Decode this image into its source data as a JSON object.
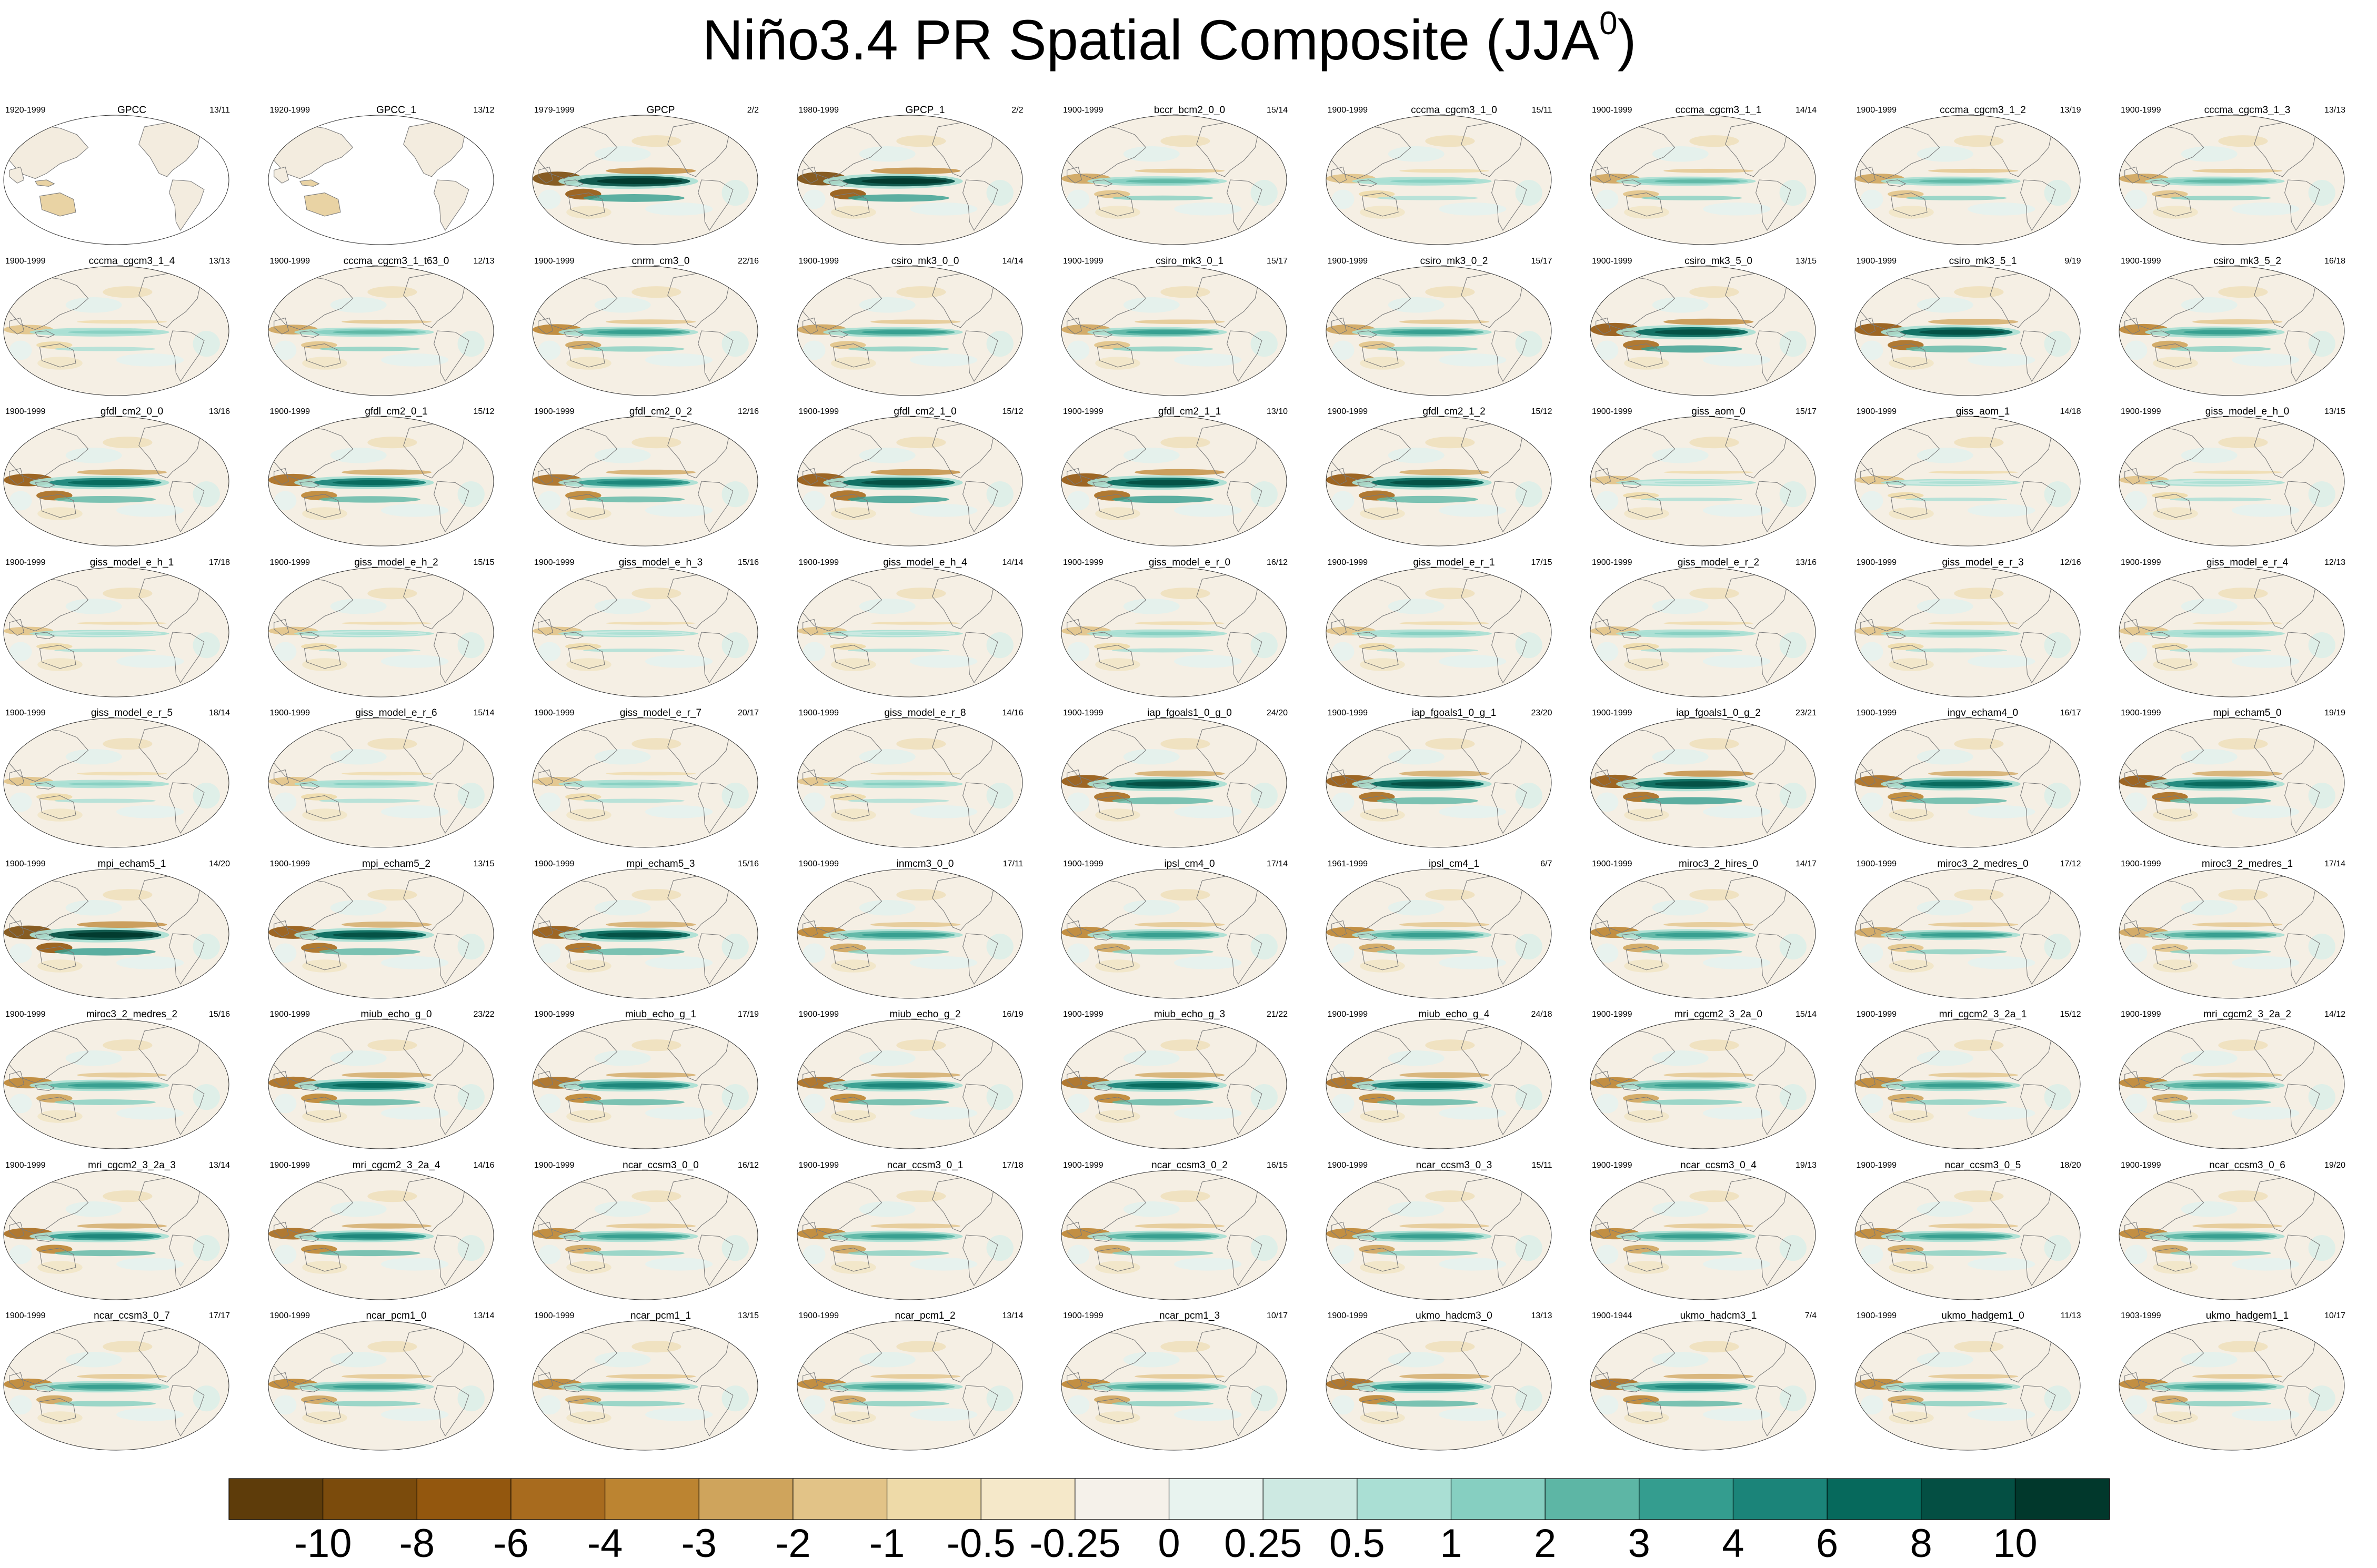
{
  "title": {
    "text": "Niño3.4 PR Spatial Composite (JJA",
    "superscript": "0",
    "suffix": ")"
  },
  "chart_data": {
    "type": "heatmap",
    "description_title": "Niño3.4 PR Spatial Composite (JJA0)",
    "layout": {
      "rows": 9,
      "columns": 9
    },
    "panels": [
      {
        "name": "GPCC",
        "years": "1920-1999",
        "count": "13/11",
        "strength": 0.35,
        "land_only": true
      },
      {
        "name": "GPCC_1",
        "years": "1920-1999",
        "count": "13/12",
        "strength": 0.35,
        "land_only": true
      },
      {
        "name": "GPCP",
        "years": "1979-1999",
        "count": "2/2",
        "strength": 1.0
      },
      {
        "name": "GPCP_1",
        "years": "1980-1999",
        "count": "2/2",
        "strength": 0.95
      },
      {
        "name": "bccr_bcm2_0_0",
        "years": "1900-1999",
        "count": "15/14",
        "strength": 0.45
      },
      {
        "name": "cccma_cgcm3_1_0",
        "years": "1900-1999",
        "count": "15/11",
        "strength": 0.35
      },
      {
        "name": "cccma_cgcm3_1_1",
        "years": "1900-1999",
        "count": "14/14",
        "strength": 0.4
      },
      {
        "name": "cccma_cgcm3_1_2",
        "years": "1900-1999",
        "count": "13/19",
        "strength": 0.4
      },
      {
        "name": "cccma_cgcm3_1_3",
        "years": "1900-1999",
        "count": "13/13",
        "strength": 0.4
      },
      {
        "name": "cccma_cgcm3_1_4",
        "years": "1900-1999",
        "count": "13/13",
        "strength": 0.35
      },
      {
        "name": "cccma_cgcm3_1_t63_0",
        "years": "1900-1999",
        "count": "12/13",
        "strength": 0.4
      },
      {
        "name": "cnrm_cm3_0",
        "years": "1900-1999",
        "count": "22/16",
        "strength": 0.55
      },
      {
        "name": "csiro_mk3_0_0",
        "years": "1900-1999",
        "count": "14/14",
        "strength": 0.5
      },
      {
        "name": "csiro_mk3_0_1",
        "years": "1900-1999",
        "count": "15/17",
        "strength": 0.5
      },
      {
        "name": "csiro_mk3_0_2",
        "years": "1900-1999",
        "count": "15/17",
        "strength": 0.5
      },
      {
        "name": "csiro_mk3_5_0",
        "years": "1900-1999",
        "count": "13/15",
        "strength": 0.9
      },
      {
        "name": "csiro_mk3_5_1",
        "years": "1900-1999",
        "count": "9/19",
        "strength": 0.85
      },
      {
        "name": "csiro_mk3_5_2",
        "years": "1900-1999",
        "count": "16/18",
        "strength": 0.6
      },
      {
        "name": "gfdl_cm2_0_0",
        "years": "1900-1999",
        "count": "13/16",
        "strength": 0.8
      },
      {
        "name": "gfdl_cm2_0_1",
        "years": "1900-1999",
        "count": "15/12",
        "strength": 0.75
      },
      {
        "name": "gfdl_cm2_0_2",
        "years": "1900-1999",
        "count": "12/16",
        "strength": 0.65
      },
      {
        "name": "gfdl_cm2_1_0",
        "years": "1900-1999",
        "count": "15/12",
        "strength": 0.9
      },
      {
        "name": "gfdl_cm2_1_1",
        "years": "1900-1999",
        "count": "13/10",
        "strength": 0.9
      },
      {
        "name": "gfdl_cm2_1_2",
        "years": "1900-1999",
        "count": "15/12",
        "strength": 0.85
      },
      {
        "name": "giss_aom_0",
        "years": "1900-1999",
        "count": "15/17",
        "strength": 0.2
      },
      {
        "name": "giss_aom_1",
        "years": "1900-1999",
        "count": "14/18",
        "strength": 0.2
      },
      {
        "name": "giss_model_e_h_0",
        "years": "1900-1999",
        "count": "13/15",
        "strength": 0.25
      },
      {
        "name": "giss_model_e_h_1",
        "years": "1900-1999",
        "count": "17/18",
        "strength": 0.2
      },
      {
        "name": "giss_model_e_h_2",
        "years": "1900-1999",
        "count": "15/15",
        "strength": 0.2
      },
      {
        "name": "giss_model_e_h_3",
        "years": "1900-1999",
        "count": "15/16",
        "strength": 0.2
      },
      {
        "name": "giss_model_e_h_4",
        "years": "1900-1999",
        "count": "14/14",
        "strength": 0.2
      },
      {
        "name": "giss_model_e_r_0",
        "years": "1900-1999",
        "count": "16/12",
        "strength": 0.3
      },
      {
        "name": "giss_model_e_r_1",
        "years": "1900-1999",
        "count": "17/15",
        "strength": 0.3
      },
      {
        "name": "giss_model_e_r_2",
        "years": "1900-1999",
        "count": "13/16",
        "strength": 0.3
      },
      {
        "name": "giss_model_e_r_3",
        "years": "1900-1999",
        "count": "12/16",
        "strength": 0.3
      },
      {
        "name": "giss_model_e_r_4",
        "years": "1900-1999",
        "count": "12/13",
        "strength": 0.3
      },
      {
        "name": "giss_model_e_r_5",
        "years": "1900-1999",
        "count": "18/14",
        "strength": 0.3
      },
      {
        "name": "giss_model_e_r_6",
        "years": "1900-1999",
        "count": "15/14",
        "strength": 0.3
      },
      {
        "name": "giss_model_e_r_7",
        "years": "1900-1999",
        "count": "20/17",
        "strength": 0.3
      },
      {
        "name": "giss_model_e_r_8",
        "years": "1900-1999",
        "count": "14/16",
        "strength": 0.3
      },
      {
        "name": "iap_fgoals1_0_g_0",
        "years": "1900-1999",
        "count": "24/20",
        "strength": 0.85
      },
      {
        "name": "iap_fgoals1_0_g_1",
        "years": "1900-1999",
        "count": "23/20",
        "strength": 0.85
      },
      {
        "name": "iap_fgoals1_0_g_2",
        "years": "1900-1999",
        "count": "23/21",
        "strength": 0.9
      },
      {
        "name": "ingv_echam4_0",
        "years": "1900-1999",
        "count": "16/17",
        "strength": 0.75
      },
      {
        "name": "mpi_echam5_0",
        "years": "1900-1999",
        "count": "19/19",
        "strength": 0.8
      },
      {
        "name": "mpi_echam5_1",
        "years": "1900-1999",
        "count": "14/20",
        "strength": 0.95
      },
      {
        "name": "mpi_echam5_2",
        "years": "1900-1999",
        "count": "13/15",
        "strength": 0.85
      },
      {
        "name": "mpi_echam5_3",
        "years": "1900-1999",
        "count": "15/16",
        "strength": 0.85
      },
      {
        "name": "inmcm3_0_0",
        "years": "1900-1999",
        "count": "17/11",
        "strength": 0.6
      },
      {
        "name": "ipsl_cm4_0",
        "years": "1900-1999",
        "count": "17/14",
        "strength": 0.6
      },
      {
        "name": "ipsl_cm4_1",
        "years": "1961-1999",
        "count": "6/7",
        "strength": 0.6
      },
      {
        "name": "miroc3_2_hires_0",
        "years": "1900-1999",
        "count": "14/17",
        "strength": 0.6
      },
      {
        "name": "miroc3_2_medres_0",
        "years": "1900-1999",
        "count": "17/12",
        "strength": 0.5
      },
      {
        "name": "miroc3_2_medres_1",
        "years": "1900-1999",
        "count": "17/14",
        "strength": 0.5
      },
      {
        "name": "miroc3_2_medres_2",
        "years": "1900-1999",
        "count": "15/16",
        "strength": 0.6
      },
      {
        "name": "miub_echo_g_0",
        "years": "1900-1999",
        "count": "23/22",
        "strength": 0.75
      },
      {
        "name": "miub_echo_g_1",
        "years": "1900-1999",
        "count": "17/19",
        "strength": 0.7
      },
      {
        "name": "miub_echo_g_2",
        "years": "1900-1999",
        "count": "16/19",
        "strength": 0.7
      },
      {
        "name": "miub_echo_g_3",
        "years": "1900-1999",
        "count": "21/22",
        "strength": 0.75
      },
      {
        "name": "miub_echo_g_4",
        "years": "1900-1999",
        "count": "24/18",
        "strength": 0.75
      },
      {
        "name": "mri_cgcm2_3_2a_0",
        "years": "1900-1999",
        "count": "15/14",
        "strength": 0.6
      },
      {
        "name": "mri_cgcm2_3_2a_1",
        "years": "1900-1999",
        "count": "15/12",
        "strength": 0.6
      },
      {
        "name": "mri_cgcm2_3_2a_2",
        "years": "1900-1999",
        "count": "14/12",
        "strength": 0.6
      },
      {
        "name": "mri_cgcm2_3_2a_3",
        "years": "1900-1999",
        "count": "13/14",
        "strength": 0.65
      },
      {
        "name": "mri_cgcm2_3_2a_4",
        "years": "1900-1999",
        "count": "14/16",
        "strength": 0.65
      },
      {
        "name": "ncar_ccsm3_0_0",
        "years": "1900-1999",
        "count": "16/12",
        "strength": 0.6
      },
      {
        "name": "ncar_ccsm3_0_1",
        "years": "1900-1999",
        "count": "17/18",
        "strength": 0.6
      },
      {
        "name": "ncar_ccsm3_0_2",
        "years": "1900-1999",
        "count": "16/15",
        "strength": 0.6
      },
      {
        "name": "ncar_ccsm3_0_3",
        "years": "1900-1999",
        "count": "15/11",
        "strength": 0.6
      },
      {
        "name": "ncar_ccsm3_0_4",
        "years": "1900-1999",
        "count": "19/13",
        "strength": 0.6
      },
      {
        "name": "ncar_ccsm3_0_5",
        "years": "1900-1999",
        "count": "18/20",
        "strength": 0.6
      },
      {
        "name": "ncar_ccsm3_0_6",
        "years": "1900-1999",
        "count": "19/20",
        "strength": 0.6
      },
      {
        "name": "ncar_ccsm3_0_7",
        "years": "1900-1999",
        "count": "17/17",
        "strength": 0.6
      },
      {
        "name": "ncar_pcm1_0",
        "years": "1900-1999",
        "count": "13/14",
        "strength": 0.55
      },
      {
        "name": "ncar_pcm1_1",
        "years": "1900-1999",
        "count": "13/15",
        "strength": 0.55
      },
      {
        "name": "ncar_pcm1_2",
        "years": "1900-1999",
        "count": "13/14",
        "strength": 0.55
      },
      {
        "name": "ncar_pcm1_3",
        "years": "1900-1999",
        "count": "10/17",
        "strength": 0.55
      },
      {
        "name": "ukmo_hadcm3_0",
        "years": "1900-1999",
        "count": "13/13",
        "strength": 0.7
      },
      {
        "name": "ukmo_hadcm3_1",
        "years": "1900-1944",
        "count": "7/4",
        "strength": 0.65
      },
      {
        "name": "ukmo_hadgem1_0",
        "years": "1900-1999",
        "count": "11/13",
        "strength": 0.55
      },
      {
        "name": "ukmo_hadgem1_1",
        "years": "1903-1999",
        "count": "10/17",
        "strength": 0.55
      }
    ],
    "colorbar": {
      "colors": [
        "#5e3c0a",
        "#7b4b0c",
        "#93570e",
        "#a86b1e",
        "#bc8431",
        "#cfa45c",
        "#e2c387",
        "#eedaa8",
        "#f5e8c9",
        "#f5f1ea",
        "#e8f3ef",
        "#cde9e2",
        "#aadfd4",
        "#86cfc1",
        "#5db6a5",
        "#349d8f",
        "#1b8479",
        "#06695c",
        "#044f43",
        "#01382c"
      ],
      "labels": [
        "-10",
        "-8",
        "-6",
        "-4",
        "-3",
        "-2",
        "-1",
        "-0.5",
        "-0.25",
        "0",
        "0.25",
        "0.5",
        "1",
        "2",
        "3",
        "4",
        "6",
        "8",
        "10"
      ]
    }
  }
}
